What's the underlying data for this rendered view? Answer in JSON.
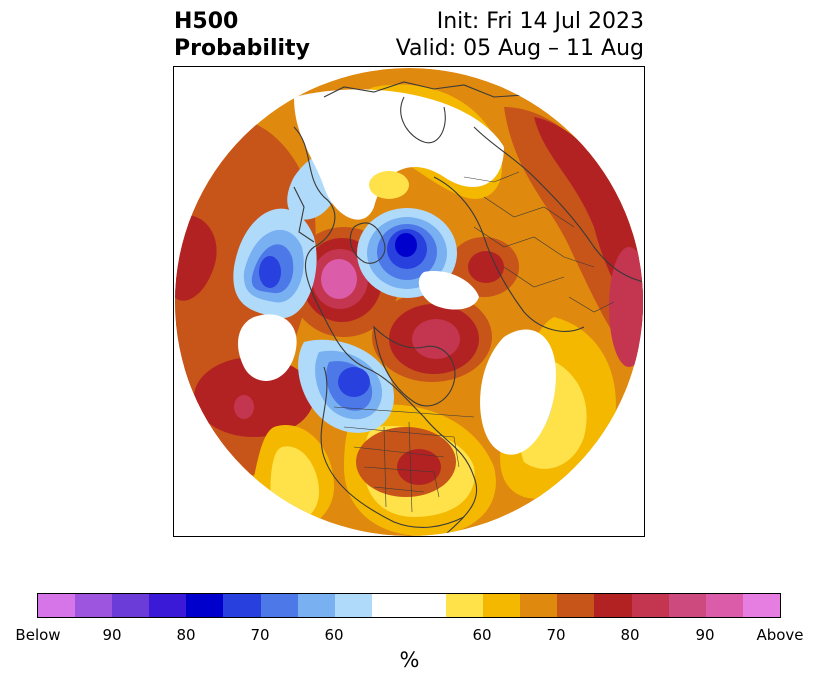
{
  "header": {
    "variable": "H500",
    "product": "Probability",
    "init": "Init: Fri 14 Jul 2023",
    "valid": "Valid: 05 Aug – 11 Aug"
  },
  "colorbar": {
    "unit": "%",
    "colors": [
      "#d675e8",
      "#9d55e0",
      "#6c3cd9",
      "#3a1ad6",
      "#0000cc",
      "#2840de",
      "#4d78e8",
      "#78b0f2",
      "#b0daf9",
      "#ffffff",
      "#ffe14a",
      "#f4b800",
      "#e0890f",
      "#c75418",
      "#b22222",
      "#c43550",
      "#cc4a7e",
      "#db5ca8",
      "#e67de0"
    ],
    "tick_labels": [
      "Below",
      "90",
      "80",
      "70",
      "60",
      "60",
      "70",
      "80",
      "90",
      "Above"
    ]
  },
  "map": {
    "projection": "north-polar-stereographic",
    "palette": {
      "below": [
        "#b0daf9",
        "#78b0f2",
        "#4d78e8",
        "#2840de",
        "#0000cc"
      ],
      "above": [
        "#ffe14a",
        "#f4b800",
        "#e0890f",
        "#c75418",
        "#b22222",
        "#c43550",
        "#db5ca8"
      ],
      "coast": "#3a3a3a"
    }
  }
}
